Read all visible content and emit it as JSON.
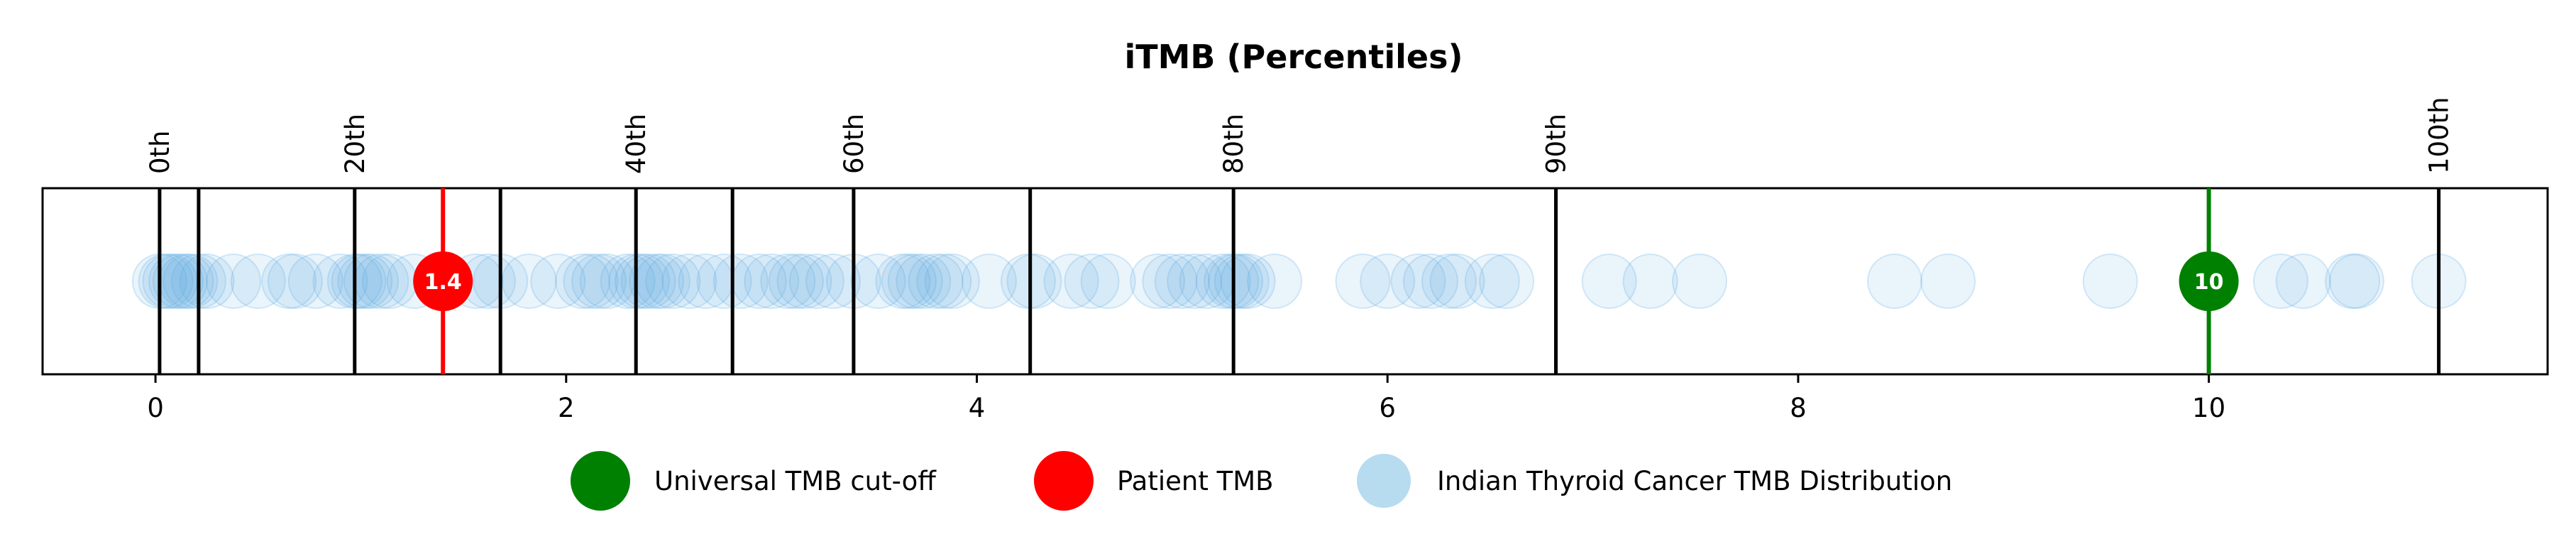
{
  "chart_data": {
    "type": "scatter",
    "title": "iTMB (Percentiles)",
    "xlabel": "",
    "ylabel": "",
    "xlim": [
      -0.55,
      11.65
    ],
    "xticks": [
      0,
      2,
      4,
      6,
      8,
      10
    ],
    "grid": false,
    "legend_position": "bottom",
    "percentiles": [
      {
        "label": "0th",
        "x": 0.02
      },
      {
        "label": "",
        "x": 0.21
      },
      {
        "label": "20th",
        "x": 0.97
      },
      {
        "label": "",
        "x": 1.68
      },
      {
        "label": "40th",
        "x": 2.34
      },
      {
        "label": "",
        "x": 2.81
      },
      {
        "label": "60th",
        "x": 3.4
      },
      {
        "label": "",
        "x": 4.26
      },
      {
        "label": "80th",
        "x": 5.25
      },
      {
        "label": "90th",
        "x": 6.82
      },
      {
        "label": "100th",
        "x": 11.12
      }
    ],
    "distribution": {
      "name": "Indian Thyroid Cancer TMB Distribution",
      "color": "#5dade2",
      "values": [
        0.02,
        0.05,
        0.07,
        0.1,
        0.12,
        0.15,
        0.17,
        0.21,
        0.25,
        0.38,
        0.5,
        0.65,
        0.68,
        0.78,
        0.9,
        0.97,
        0.99,
        1.02,
        1.05,
        1.1,
        1.14,
        1.26,
        1.4,
        1.56,
        1.62,
        1.68,
        1.82,
        1.96,
        2.08,
        2.12,
        2.16,
        2.2,
        2.3,
        2.34,
        2.37,
        2.4,
        2.44,
        2.47,
        2.52,
        2.6,
        2.68,
        2.77,
        2.85,
        2.94,
        3.0,
        3.08,
        3.12,
        3.16,
        3.22,
        3.3,
        3.4,
        3.52,
        3.64,
        3.67,
        3.7,
        3.74,
        3.8,
        3.84,
        3.88,
        4.06,
        4.25,
        4.28,
        4.46,
        4.56,
        4.64,
        4.88,
        4.94,
        5.0,
        5.06,
        5.12,
        5.2,
        5.24,
        5.26,
        5.29,
        5.32,
        5.45,
        5.88,
        6.0,
        6.15,
        6.21,
        6.3,
        6.34,
        6.51,
        6.58,
        7.08,
        7.28,
        7.52,
        8.47,
        8.73,
        9.52,
        10.35,
        10.46,
        10.7,
        10.72,
        11.12
      ]
    },
    "patient": {
      "name": "Patient TMB",
      "value": 1.4,
      "label": "1.4",
      "color": "#ff0000"
    },
    "cutoff": {
      "name": "Universal TMB cut-off",
      "value": 10,
      "label": "10",
      "color": "#008000"
    },
    "tick_labels": [
      "0",
      "2",
      "4",
      "6",
      "8",
      "10"
    ]
  }
}
